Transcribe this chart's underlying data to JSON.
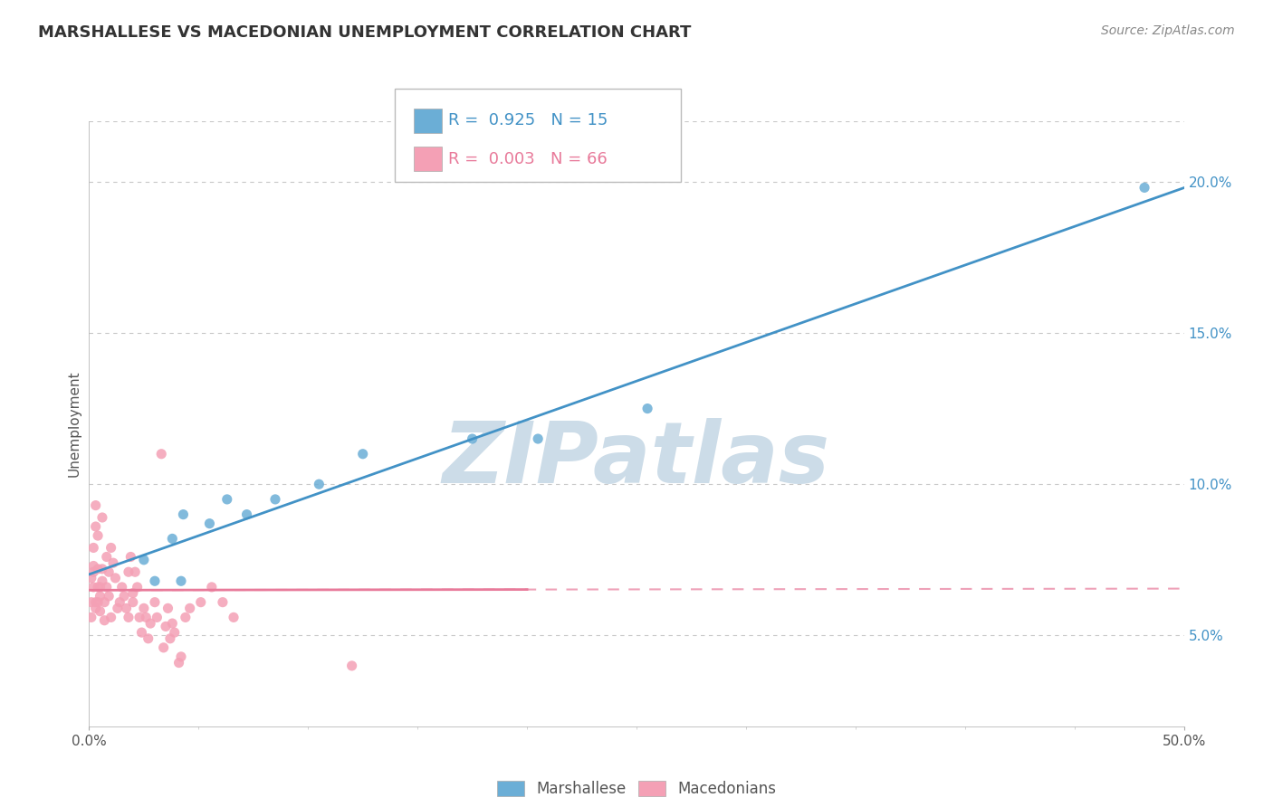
{
  "title": "MARSHALLESE VS MACEDONIAN UNEMPLOYMENT CORRELATION CHART",
  "source_text": "Source: ZipAtlas.com",
  "ylabel": "Unemployment",
  "xlim": [
    0.0,
    0.5
  ],
  "ylim": [
    0.02,
    0.22
  ],
  "x_ticks": [
    0.0,
    0.5
  ],
  "x_tick_labels": [
    "0.0%",
    "50.0%"
  ],
  "y_ticks_right": [
    0.05,
    0.1,
    0.15,
    0.2
  ],
  "y_tick_labels_right": [
    "5.0%",
    "10.0%",
    "15.0%",
    "20.0%"
  ],
  "marshallese_color": "#6baed6",
  "macedonian_color": "#f4a0b5",
  "marshallese_line_color": "#4292c6",
  "macedonian_line_color": "#e87a9a",
  "watermark_color": "#ccdce8",
  "legend_R_marshallese": "0.925",
  "legend_N_marshallese": "15",
  "legend_R_macedonian": "0.003",
  "legend_N_macedonian": "66",
  "marshallese_scatter": [
    [
      0.025,
      0.075
    ],
    [
      0.03,
      0.068
    ],
    [
      0.038,
      0.082
    ],
    [
      0.042,
      0.068
    ],
    [
      0.043,
      0.09
    ],
    [
      0.055,
      0.087
    ],
    [
      0.063,
      0.095
    ],
    [
      0.072,
      0.09
    ],
    [
      0.085,
      0.095
    ],
    [
      0.105,
      0.1
    ],
    [
      0.125,
      0.11
    ],
    [
      0.175,
      0.115
    ],
    [
      0.205,
      0.115
    ],
    [
      0.255,
      0.125
    ],
    [
      0.482,
      0.198
    ]
  ],
  "macedonian_scatter": [
    [
      0.004,
      0.066
    ],
    [
      0.004,
      0.072
    ],
    [
      0.005,
      0.063
    ],
    [
      0.005,
      0.058
    ],
    [
      0.006,
      0.068
    ],
    [
      0.006,
      0.072
    ],
    [
      0.007,
      0.061
    ],
    [
      0.007,
      0.055
    ],
    [
      0.008,
      0.066
    ],
    [
      0.008,
      0.076
    ],
    [
      0.009,
      0.071
    ],
    [
      0.009,
      0.063
    ],
    [
      0.01,
      0.079
    ],
    [
      0.01,
      0.056
    ],
    [
      0.011,
      0.074
    ],
    [
      0.012,
      0.069
    ],
    [
      0.013,
      0.059
    ],
    [
      0.014,
      0.061
    ],
    [
      0.015,
      0.066
    ],
    [
      0.016,
      0.063
    ],
    [
      0.017,
      0.059
    ],
    [
      0.018,
      0.071
    ],
    [
      0.018,
      0.056
    ],
    [
      0.019,
      0.076
    ],
    [
      0.02,
      0.064
    ],
    [
      0.02,
      0.061
    ],
    [
      0.021,
      0.071
    ],
    [
      0.022,
      0.066
    ],
    [
      0.023,
      0.056
    ],
    [
      0.024,
      0.051
    ],
    [
      0.025,
      0.059
    ],
    [
      0.026,
      0.056
    ],
    [
      0.027,
      0.049
    ],
    [
      0.028,
      0.054
    ],
    [
      0.03,
      0.061
    ],
    [
      0.031,
      0.056
    ],
    [
      0.033,
      0.11
    ],
    [
      0.034,
      0.046
    ],
    [
      0.035,
      0.053
    ],
    [
      0.036,
      0.059
    ],
    [
      0.037,
      0.049
    ],
    [
      0.038,
      0.054
    ],
    [
      0.039,
      0.051
    ],
    [
      0.041,
      0.041
    ],
    [
      0.042,
      0.043
    ],
    [
      0.044,
      0.056
    ],
    [
      0.046,
      0.059
    ],
    [
      0.051,
      0.061
    ],
    [
      0.056,
      0.066
    ],
    [
      0.061,
      0.061
    ],
    [
      0.066,
      0.056
    ],
    [
      0.003,
      0.086
    ],
    [
      0.003,
      0.093
    ],
    [
      0.003,
      0.061
    ],
    [
      0.004,
      0.083
    ],
    [
      0.004,
      0.061
    ],
    [
      0.005,
      0.066
    ],
    [
      0.006,
      0.089
    ],
    [
      0.002,
      0.079
    ],
    [
      0.002,
      0.073
    ],
    [
      0.001,
      0.069
    ],
    [
      0.001,
      0.061
    ],
    [
      0.001,
      0.056
    ],
    [
      0.002,
      0.066
    ],
    [
      0.002,
      0.071
    ],
    [
      0.003,
      0.059
    ],
    [
      0.12,
      0.04
    ]
  ],
  "bg_color": "#ffffff",
  "grid_color": "#c8c8c8"
}
